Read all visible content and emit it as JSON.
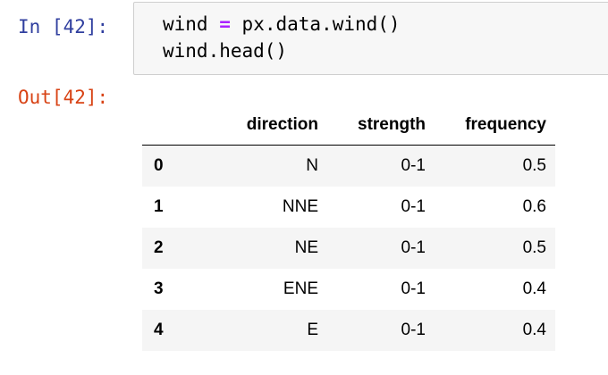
{
  "cell": {
    "in_prompt": "In [42]:",
    "out_prompt": "Out[42]:",
    "code": {
      "line1_var": "wind",
      "line1_op": "=",
      "line1_rest": "px.data.wind()",
      "line2": "wind.head()"
    }
  },
  "table": {
    "columns": [
      "",
      "direction",
      "strength",
      "frequency"
    ],
    "rows": [
      {
        "index": "0",
        "direction": "N",
        "strength": "0-1",
        "frequency": "0.5"
      },
      {
        "index": "1",
        "direction": "NNE",
        "strength": "0-1",
        "frequency": "0.6"
      },
      {
        "index": "2",
        "direction": "NE",
        "strength": "0-1",
        "frequency": "0.5"
      },
      {
        "index": "3",
        "direction": "ENE",
        "strength": "0-1",
        "frequency": "0.4"
      },
      {
        "index": "4",
        "direction": "E",
        "strength": "0-1",
        "frequency": "0.4"
      }
    ]
  },
  "colors": {
    "in_prompt": "#303f9f",
    "out_prompt": "#d84315",
    "operator": "#aa22ff",
    "input_background": "#f7f7f7",
    "row_stripe": "#f5f5f5"
  }
}
